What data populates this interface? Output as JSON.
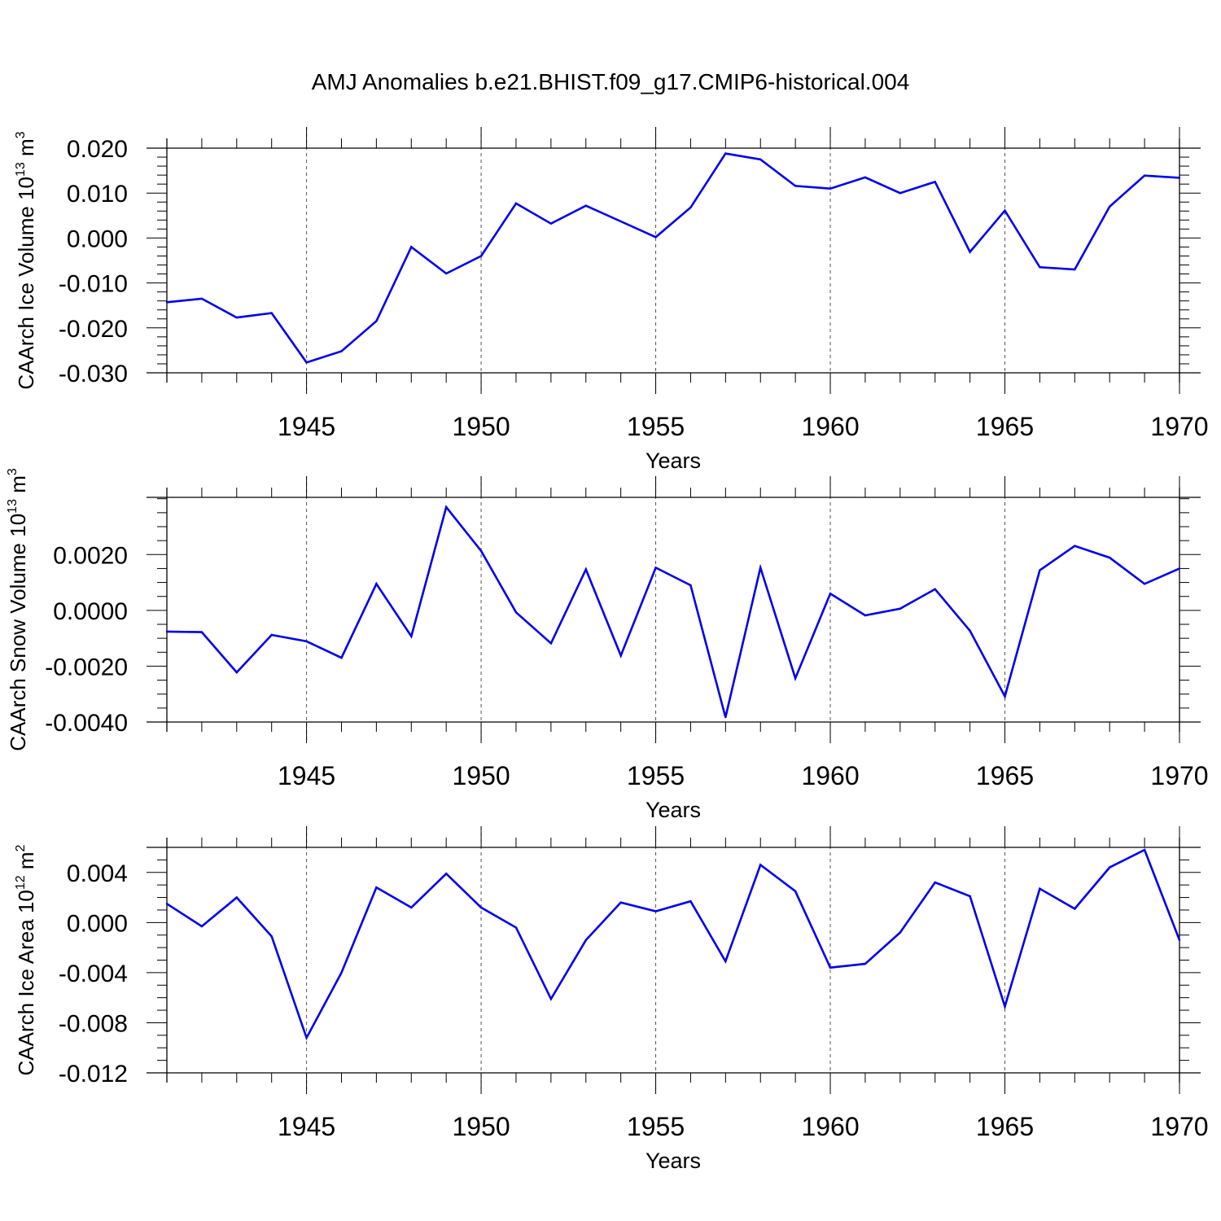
{
  "figure": {
    "title": "AMJ Anomalies b.e21.BHIST.f09_g17.CMIP6-historical.004"
  },
  "chart_data": [
    {
      "type": "line",
      "ylabel": "CAArch Ice Volume 10",
      "ylabel_exp": "13",
      "ylabel_unit": " m",
      "ylabel_unit_exp": "3",
      "xlabel": "Years",
      "xlim": [
        1941,
        1970
      ],
      "ylim": [
        -0.03,
        0.02
      ],
      "yticks": [
        -0.03,
        -0.02,
        -0.01,
        0.0,
        0.01,
        0.02
      ],
      "ytick_labels": [
        "-0.030",
        "-0.020",
        "-0.010",
        "0.000",
        "0.010",
        "0.020"
      ],
      "xticks": [
        1945,
        1950,
        1955,
        1960,
        1965,
        1970
      ],
      "xtick_labels": [
        "1945",
        "1950",
        "1955",
        "1960",
        "1965",
        "1970"
      ],
      "grid": "dashed vertical at major x ticks",
      "line_color": "#0000ee",
      "x": [
        1941,
        1942,
        1943,
        1944,
        1945,
        1946,
        1947,
        1948,
        1949,
        1950,
        1951,
        1952,
        1953,
        1954,
        1955,
        1956,
        1957,
        1958,
        1959,
        1960,
        1961,
        1962,
        1963,
        1964,
        1965,
        1966,
        1967,
        1968,
        1969,
        1970
      ],
      "y": [
        -0.0143,
        -0.0135,
        -0.0177,
        -0.0167,
        -0.0277,
        -0.0252,
        -0.0185,
        -0.002,
        -0.0079,
        -0.004,
        0.0077,
        0.0032,
        0.0072,
        0.0037,
        0.0002,
        0.0068,
        0.0188,
        0.0175,
        0.0116,
        0.011,
        0.0135,
        0.01,
        0.0125,
        -0.0031,
        0.0061,
        -0.0065,
        -0.007,
        0.007,
        0.0139,
        0.0134
      ]
    },
    {
      "type": "line",
      "ylabel": "CAArch Snow Volume 10",
      "ylabel_exp": "13",
      "ylabel_unit": " m",
      "ylabel_unit_exp": "3",
      "xlabel": "Years",
      "xlim": [
        1941,
        1970
      ],
      "ylim": [
        -0.004,
        0.004
      ],
      "yticks": [
        -0.004,
        -0.002,
        0.0,
        0.002
      ],
      "ytick_labels": [
        "-0.0040",
        "-0.0020",
        "0.0000",
        "0.0020"
      ],
      "xticks": [
        1945,
        1950,
        1955,
        1960,
        1965,
        1970
      ],
      "xtick_labels": [
        "1945",
        "1950",
        "1955",
        "1960",
        "1965",
        "1970"
      ],
      "grid": "dashed vertical at major x ticks",
      "line_color": "#0000ee",
      "x": [
        1941,
        1942,
        1943,
        1944,
        1945,
        1946,
        1947,
        1948,
        1949,
        1950,
        1951,
        1952,
        1953,
        1954,
        1955,
        1956,
        1957,
        1958,
        1959,
        1960,
        1961,
        1962,
        1963,
        1964,
        1965,
        1966,
        1967,
        1968,
        1969,
        1970
      ],
      "y": [
        -0.00076,
        -0.00078,
        -0.00222,
        -0.00088,
        -0.00111,
        -0.0017,
        0.00095,
        -0.00093,
        0.0037,
        0.00213,
        -7e-05,
        -0.00118,
        0.00147,
        -0.00162,
        0.00153,
        0.0009,
        -0.00383,
        0.00153,
        -0.00243,
        0.0006,
        -0.00018,
        6e-05,
        0.00076,
        -0.00073,
        -0.00308,
        0.00144,
        0.00231,
        0.00189,
        0.00095,
        0.0015
      ]
    },
    {
      "type": "line",
      "ylabel": "CAArch Ice Area 10",
      "ylabel_exp": "12",
      "ylabel_unit": " m",
      "ylabel_unit_exp": "2",
      "xlabel": "Years",
      "xlim": [
        1941,
        1970
      ],
      "ylim": [
        -0.012,
        0.006
      ],
      "yticks": [
        -0.012,
        -0.008,
        -0.004,
        0.0,
        0.004
      ],
      "ytick_labels": [
        "-0.012",
        "-0.008",
        "-0.004",
        "0.000",
        "0.004"
      ],
      "xticks": [
        1945,
        1950,
        1955,
        1960,
        1965,
        1970
      ],
      "xtick_labels": [
        "1945",
        "1950",
        "1955",
        "1960",
        "1965",
        "1970"
      ],
      "grid": "dashed vertical at major x ticks",
      "line_color": "#0000ee",
      "x": [
        1941,
        1942,
        1943,
        1944,
        1945,
        1946,
        1947,
        1948,
        1949,
        1950,
        1951,
        1952,
        1953,
        1954,
        1955,
        1956,
        1957,
        1958,
        1959,
        1960,
        1961,
        1962,
        1963,
        1964,
        1965,
        1966,
        1967,
        1968,
        1969,
        1970
      ],
      "y": [
        0.0015,
        -0.0003,
        0.002,
        -0.0011,
        -0.0092,
        -0.004,
        0.0028,
        0.0012,
        0.0039,
        0.0012,
        -0.0004,
        -0.0061,
        -0.0014,
        0.0016,
        0.0009,
        0.0017,
        -0.0031,
        0.0046,
        0.0025,
        -0.0036,
        -0.0033,
        -0.0008,
        0.0032,
        0.0021,
        -0.0067,
        0.0027,
        0.0011,
        0.0044,
        0.0058,
        -0.0014
      ]
    }
  ]
}
